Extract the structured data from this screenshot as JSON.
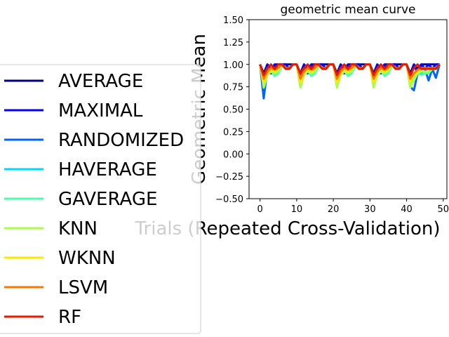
{
  "chart_data": {
    "type": "line",
    "title": "geometric mean curve",
    "xlabel": "Trials (Repeated Cross-Validation)",
    "ylabel": "Geometric Mean",
    "xlim": [
      -3,
      51
    ],
    "ylim": [
      -0.5,
      1.5
    ],
    "xticks": [
      "0",
      "10",
      "20",
      "30",
      "40",
      "50"
    ],
    "yticks": [
      "−0.50",
      "−0.25",
      "0.00",
      "0.25",
      "0.50",
      "0.75",
      "1.00",
      "1.25",
      "1.50"
    ],
    "legend_position": "left",
    "x": [
      0,
      1,
      2,
      3,
      4,
      5,
      6,
      7,
      8,
      9,
      10,
      11,
      12,
      13,
      14,
      15,
      16,
      17,
      18,
      19,
      20,
      21,
      22,
      23,
      24,
      25,
      26,
      27,
      28,
      29,
      30,
      31,
      32,
      33,
      34,
      35,
      36,
      37,
      38,
      39,
      40,
      41,
      42,
      43,
      44,
      45,
      46,
      47,
      48,
      49
    ],
    "series": [
      {
        "name": "AVERAGE",
        "color": "#00007f",
        "values": [
          1,
          0.9,
          1,
          0.95,
          1,
          1,
          1,
          1,
          1,
          1,
          1,
          0.9,
          1,
          0.95,
          1,
          1,
          1,
          1,
          1,
          1,
          1,
          0.9,
          1,
          0.95,
          1,
          1,
          1,
          1,
          1,
          1,
          1,
          0.9,
          1,
          0.95,
          1,
          1,
          1,
          1,
          1,
          1,
          1,
          0.9,
          1,
          0.95,
          1,
          1,
          1,
          1,
          1,
          1
        ]
      },
      {
        "name": "MAXIMAL",
        "color": "#0000ff",
        "values": [
          1,
          0.85,
          1,
          0.9,
          1,
          0.95,
          1,
          1,
          0.95,
          1,
          1,
          0.85,
          1,
          0.9,
          1,
          0.95,
          1,
          1,
          0.95,
          1,
          1,
          0.85,
          1,
          0.9,
          1,
          0.95,
          1,
          1,
          0.95,
          1,
          1,
          0.85,
          1,
          0.9,
          1,
          0.95,
          1,
          1,
          0.95,
          1,
          1,
          0.85,
          1,
          0.9,
          1,
          0.95,
          1,
          0.95,
          1,
          1
        ]
      },
      {
        "name": "RANDOMIZED",
        "color": "#0063ff",
        "values": [
          1,
          0.62,
          0.95,
          0.95,
          0.9,
          0.95,
          1,
          0.95,
          0.95,
          1,
          1,
          0.85,
          0.95,
          0.95,
          0.88,
          0.95,
          1,
          0.95,
          0.95,
          1,
          1,
          0.8,
          0.95,
          0.95,
          0.88,
          0.95,
          1,
          0.95,
          0.95,
          1,
          1,
          0.82,
          0.95,
          0.95,
          0.88,
          0.95,
          1,
          0.95,
          0.95,
          1,
          1,
          0.75,
          0.71,
          0.9,
          0.95,
          0.95,
          0.82,
          0.95,
          0.85,
          1
        ]
      },
      {
        "name": "HAVERAGE",
        "color": "#00d4ff",
        "values": [
          1,
          0.78,
          0.92,
          0.95,
          0.88,
          0.92,
          1,
          0.95,
          0.95,
          1,
          1,
          0.78,
          0.92,
          0.95,
          0.88,
          0.92,
          1,
          0.95,
          0.95,
          1,
          1,
          0.78,
          0.92,
          0.95,
          0.88,
          0.92,
          1,
          0.95,
          0.95,
          1,
          1,
          0.78,
          0.92,
          0.95,
          0.88,
          0.92,
          1,
          0.95,
          0.95,
          1,
          1,
          0.78,
          0.85,
          0.92,
          0.9,
          0.92,
          0.9,
          0.95,
          0.95,
          1
        ]
      },
      {
        "name": "GAVERAGE",
        "color": "#4cffaa",
        "values": [
          1,
          0.76,
          0.9,
          0.93,
          0.87,
          0.9,
          0.98,
          0.95,
          0.95,
          1,
          1,
          0.76,
          0.9,
          0.93,
          0.87,
          0.9,
          0.98,
          0.95,
          0.95,
          1,
          1,
          0.76,
          0.9,
          0.93,
          0.87,
          0.9,
          0.98,
          0.95,
          0.95,
          1,
          1,
          0.76,
          0.9,
          0.93,
          0.87,
          0.9,
          0.98,
          0.95,
          0.95,
          1,
          1,
          0.76,
          0.84,
          0.9,
          0.88,
          0.9,
          0.9,
          0.95,
          0.95,
          1
        ]
      },
      {
        "name": "KNN",
        "color": "#aaff4c",
        "values": [
          1,
          0.74,
          0.88,
          0.92,
          0.9,
          0.92,
          1,
          0.95,
          0.95,
          1,
          1,
          0.74,
          0.88,
          0.92,
          0.9,
          0.92,
          1,
          0.95,
          0.95,
          1,
          1,
          0.74,
          0.88,
          0.92,
          0.9,
          0.92,
          1,
          0.95,
          0.95,
          1,
          1,
          0.74,
          0.88,
          0.92,
          0.9,
          0.92,
          1,
          0.95,
          0.95,
          1,
          1,
          0.74,
          0.82,
          0.9,
          0.92,
          0.92,
          0.92,
          0.95,
          0.95,
          1
        ]
      },
      {
        "name": "WKNN",
        "color": "#ffe500",
        "values": [
          1,
          0.8,
          0.9,
          0.95,
          0.92,
          0.95,
          1,
          0.95,
          0.95,
          1,
          1,
          0.8,
          0.9,
          0.95,
          0.92,
          0.95,
          1,
          0.95,
          0.95,
          1,
          1,
          0.8,
          0.9,
          0.95,
          0.92,
          0.95,
          1,
          0.95,
          0.95,
          1,
          1,
          0.8,
          0.9,
          0.95,
          0.92,
          0.95,
          1,
          0.95,
          0.95,
          1,
          1,
          0.8,
          0.88,
          0.92,
          0.95,
          0.95,
          0.95,
          0.95,
          0.95,
          1
        ]
      },
      {
        "name": "LSVM",
        "color": "#ff7700",
        "values": [
          1,
          0.84,
          0.92,
          0.96,
          0.94,
          0.96,
          1,
          0.96,
          0.96,
          1,
          1,
          0.84,
          0.92,
          0.96,
          0.94,
          0.96,
          1,
          0.96,
          0.96,
          1,
          1,
          0.84,
          0.92,
          0.96,
          0.94,
          0.96,
          1,
          0.96,
          0.96,
          1,
          1,
          0.84,
          0.92,
          0.96,
          0.94,
          0.96,
          1,
          0.96,
          0.96,
          1,
          1,
          0.84,
          0.9,
          0.94,
          0.96,
          0.96,
          0.96,
          0.96,
          0.96,
          1
        ]
      },
      {
        "name": "RF",
        "color": "#e41a00",
        "values": [
          1,
          0.88,
          0.96,
          1,
          0.95,
          1,
          1,
          0.95,
          0.95,
          1,
          1,
          0.9,
          0.96,
          1,
          0.95,
          1,
          1,
          0.95,
          0.95,
          1,
          1,
          0.88,
          0.96,
          1,
          0.95,
          1,
          1,
          0.95,
          0.95,
          1,
          1,
          0.88,
          0.96,
          1,
          0.95,
          1,
          1,
          0.95,
          0.95,
          1,
          1,
          0.88,
          0.96,
          1,
          0.95,
          0.95,
          0.95,
          0.95,
          0.95,
          1
        ]
      }
    ]
  }
}
